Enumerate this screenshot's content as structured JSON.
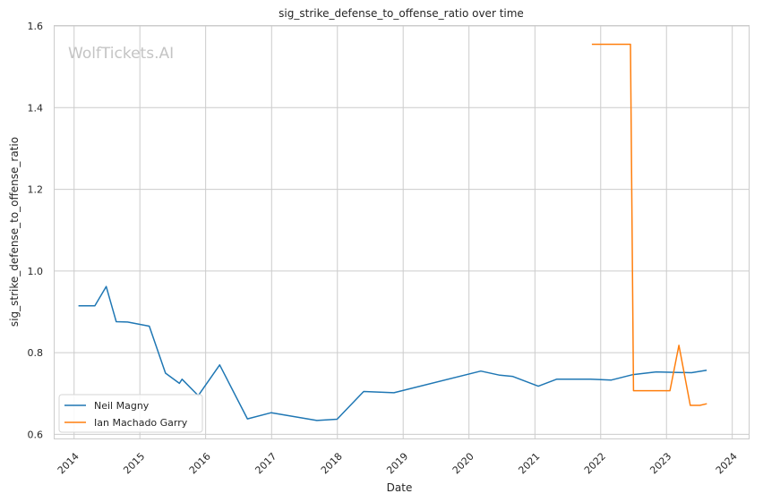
{
  "chart_data": {
    "type": "line",
    "title": "sig_strike_defense_to_offense_ratio over time",
    "xlabel": "Date",
    "ylabel": "sig_strike_defense_to_offense_ratio",
    "watermark": "WolfTickets.AI",
    "xlim": [
      "2013-09-15",
      "2024-04-01"
    ],
    "ylim": [
      0.59,
      1.6
    ],
    "x_ticks": [
      "2014",
      "2015",
      "2016",
      "2017",
      "2018",
      "2019",
      "2020",
      "2021",
      "2022",
      "2023",
      "2024"
    ],
    "y_ticks": [
      "0.6",
      "0.8",
      "1.0",
      "1.2",
      "1.4",
      "1.6"
    ],
    "grid": true,
    "legend_placement": "lower-left",
    "series": [
      {
        "name": "Neil Magny",
        "color": "#1f77b4",
        "points": [
          [
            "2014-01-25",
            0.915
          ],
          [
            "2014-04-26",
            0.915
          ],
          [
            "2014-06-28",
            0.962
          ],
          [
            "2014-08-23",
            0.876
          ],
          [
            "2014-10-25",
            0.875
          ],
          [
            "2015-02-22",
            0.865
          ],
          [
            "2015-05-23",
            0.75
          ],
          [
            "2015-08-08",
            0.725
          ],
          [
            "2015-08-23",
            0.735
          ],
          [
            "2015-11-21",
            0.695
          ],
          [
            "2016-03-19",
            0.77
          ],
          [
            "2016-08-20",
            0.638
          ],
          [
            "2016-12-30",
            0.653
          ],
          [
            "2017-09-09",
            0.634
          ],
          [
            "2017-12-30",
            0.637
          ],
          [
            "2018-05-27",
            0.705
          ],
          [
            "2018-11-11",
            0.702
          ],
          [
            "2020-03-07",
            0.755
          ],
          [
            "2020-06-20",
            0.745
          ],
          [
            "2020-08-29",
            0.742
          ],
          [
            "2021-01-20",
            0.718
          ],
          [
            "2021-05-01",
            0.735
          ],
          [
            "2021-11-06",
            0.735
          ],
          [
            "2022-03-01",
            0.733
          ],
          [
            "2022-06-25",
            0.746
          ],
          [
            "2022-11-05",
            0.753
          ],
          [
            "2023-02-10",
            0.752
          ],
          [
            "2023-05-20",
            0.751
          ],
          [
            "2023-08-12",
            0.757
          ]
        ]
      },
      {
        "name": "Ian Machado Garry",
        "color": "#ff7f0e",
        "points": [
          [
            "2021-11-13",
            1.555
          ],
          [
            "2022-06-15",
            1.555
          ],
          [
            "2022-07-02",
            0.707
          ],
          [
            "2022-11-12",
            0.707
          ],
          [
            "2023-01-20",
            0.707
          ],
          [
            "2023-03-11",
            0.818
          ],
          [
            "2023-05-13",
            0.671
          ],
          [
            "2023-07-05",
            0.671
          ],
          [
            "2023-08-13",
            0.675
          ]
        ]
      }
    ]
  }
}
